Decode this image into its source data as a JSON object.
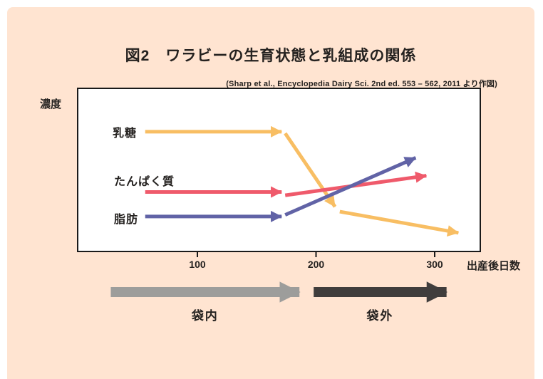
{
  "page": {
    "title": "図2　ワラビーの生育状態と乳組成の関係",
    "source": "(Sharp et al., Encyclopedia Dairy Sci. 2nd ed. 553 – 562, 2011 より作図)"
  },
  "colors": {
    "card_background": "#FFE4D1",
    "plot_border": "#1a1a1a",
    "text": "#252220",
    "lactose": "#F8BE63",
    "protein": "#EF5A6B",
    "fat": "#6163A6",
    "stage_in_pouch": "#9D9D9B",
    "stage_out_pouch": "#403D3C"
  },
  "chart_data": {
    "type": "line",
    "title": "図2 ワラビーの生育状態と乳組成の関係",
    "source_note": "(Sharp et al., Encyclopedia Dairy Sci. 2nd ed. 553 – 562, 2011 より作図)",
    "xlabel": "出産後日数",
    "ylabel": "濃度",
    "x_ticks": [
      100,
      200,
      300
    ],
    "x_range": [
      0,
      338
    ],
    "y_axis": "qualitative (concentration, no scale shown)",
    "grid": false,
    "legend_position": "labels at line start, inside plot",
    "series": [
      {
        "id": "lactose",
        "name": "乳糖",
        "color": "#F8BE63",
        "segments": [
          {
            "x": [
              56,
              171
            ],
            "level": [
              0.73,
              0.73
            ]
          },
          {
            "x": [
              174,
              216
            ],
            "level": [
              0.72,
              0.27
            ]
          },
          {
            "x": [
              220,
              320
            ],
            "level": [
              0.24,
              0.11
            ]
          }
        ]
      },
      {
        "id": "protein",
        "name": "たんぱく質",
        "color": "#EF5A6B",
        "segments": [
          {
            "x": [
              56,
              171
            ],
            "level": [
              0.36,
              0.36
            ]
          },
          {
            "x": [
              174,
              293
            ],
            "level": [
              0.34,
              0.46
            ]
          }
        ]
      },
      {
        "id": "fat",
        "name": "脂肪",
        "color": "#6163A6",
        "segments": [
          {
            "x": [
              56,
              171
            ],
            "level": [
              0.21,
              0.21
            ]
          },
          {
            "x": [
              174,
              284
            ],
            "level": [
              0.22,
              0.57
            ]
          }
        ]
      }
    ],
    "stages": [
      {
        "id": "in-pouch",
        "label": "袋内",
        "x": [
          27,
          186
        ],
        "color": "#9D9D9B"
      },
      {
        "id": "out-pouch",
        "label": "袋外",
        "x": [
          198,
          310
        ],
        "color": "#403D3C"
      }
    ]
  }
}
